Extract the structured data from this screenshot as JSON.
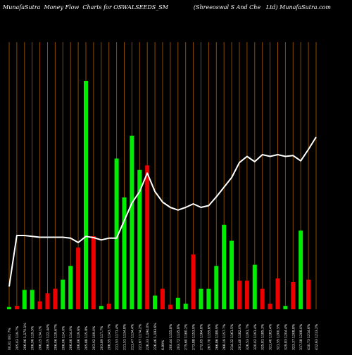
{
  "header": {
    "left": "MunafaSutra  Money Flow  Charts for OSWALSEEDS_SM",
    "right": "(Shreeoswal S And Che   Ltd) MunafaSutra.com"
  },
  "colors": {
    "background": "#000000",
    "grid": "#8a4a00",
    "up": "#00ee00",
    "down": "#ee0000",
    "price_line": "#ffffff"
  },
  "chart_data": {
    "type": "bar",
    "title": "",
    "xlabel": "",
    "ylabel": "",
    "ylim": [
      0,
      100
    ],
    "categories": [
      "00.01 001 7%",
      "205.03 119.7%",
      "206.96 1,170.1%",
      "206.96 119.5%",
      "206.15 134.1%",
      "206.15 122.44%",
      "206.06 119.67%",
      "206.06 114.0%",
      "206.06 114.0%",
      "206.06 119.6%",
      "205.88 115.8%",
      "203.92 109.0%",
      "203.89 117.7%",
      "206.55 1143.7%",
      "211.53 1171.4%",
      "211.51 1134.8%",
      "211.47 1134.4%",
      "221.67 1174.2%",
      "226.33 1,194.0%",
      "226.46 1,193.6%",
      "6.89%",
      "200.44 1155.8%",
      "203.72 1135.8%",
      "275.60 1160.2%",
      "273.88 1153.9%",
      "272.05 1164.8%",
      "267.70 1155.6%",
      "266.86 1189.9%",
      "268.19 1157.7%",
      "214.32 1161.5%",
      "201.40 1182.0%",
      "326.53 1191.7%",
      "320.02 1191.4%",
      "325.81 1185.3%",
      "321.40 1183.4%",
      "321.55 1200.5%",
      "329.83 1204.4%",
      "323.37 1208.8%",
      "317.58 1208.0%",
      "410.73 1214.6%",
      "412.63 1213.2%"
    ],
    "series": [
      {
        "kind": "volume",
        "values": [
          1,
          1.5,
          8.5,
          8.5,
          3.5,
          7,
          9,
          13,
          19,
          27,
          100,
          32,
          1.5,
          2.5,
          66,
          49,
          76,
          61,
          63,
          6,
          9,
          2,
          5,
          2.5,
          24,
          9,
          9,
          19,
          37,
          30,
          12.5,
          12.5,
          19.5,
          9,
          2.5,
          13.5,
          1.5,
          12,
          34.5,
          13,
          0
        ],
        "direction": [
          "up",
          "down",
          "up",
          "up",
          "down",
          "down",
          "down",
          "up",
          "up",
          "down",
          "up",
          "down",
          "up",
          "down",
          "up",
          "up",
          "up",
          "up",
          "down",
          "up",
          "down",
          "down",
          "up",
          "up",
          "down",
          "up",
          "up",
          "up",
          "up",
          "up",
          "down",
          "down",
          "up",
          "down",
          "down",
          "down",
          "up",
          "down",
          "up",
          "down",
          "down"
        ]
      },
      {
        "kind": "price",
        "values": [
          13,
          42,
          42,
          41.5,
          41,
          41,
          41,
          41,
          40.5,
          38,
          41.5,
          40.8,
          39.5,
          40.5,
          40.5,
          50.5,
          60.5,
          67,
          77.5,
          67,
          61,
          58,
          56.5,
          58,
          60,
          58,
          59,
          64,
          69.5,
          75,
          83.5,
          87,
          84,
          88,
          87,
          88,
          87,
          87.5,
          84.5,
          91,
          98
        ]
      }
    ]
  }
}
